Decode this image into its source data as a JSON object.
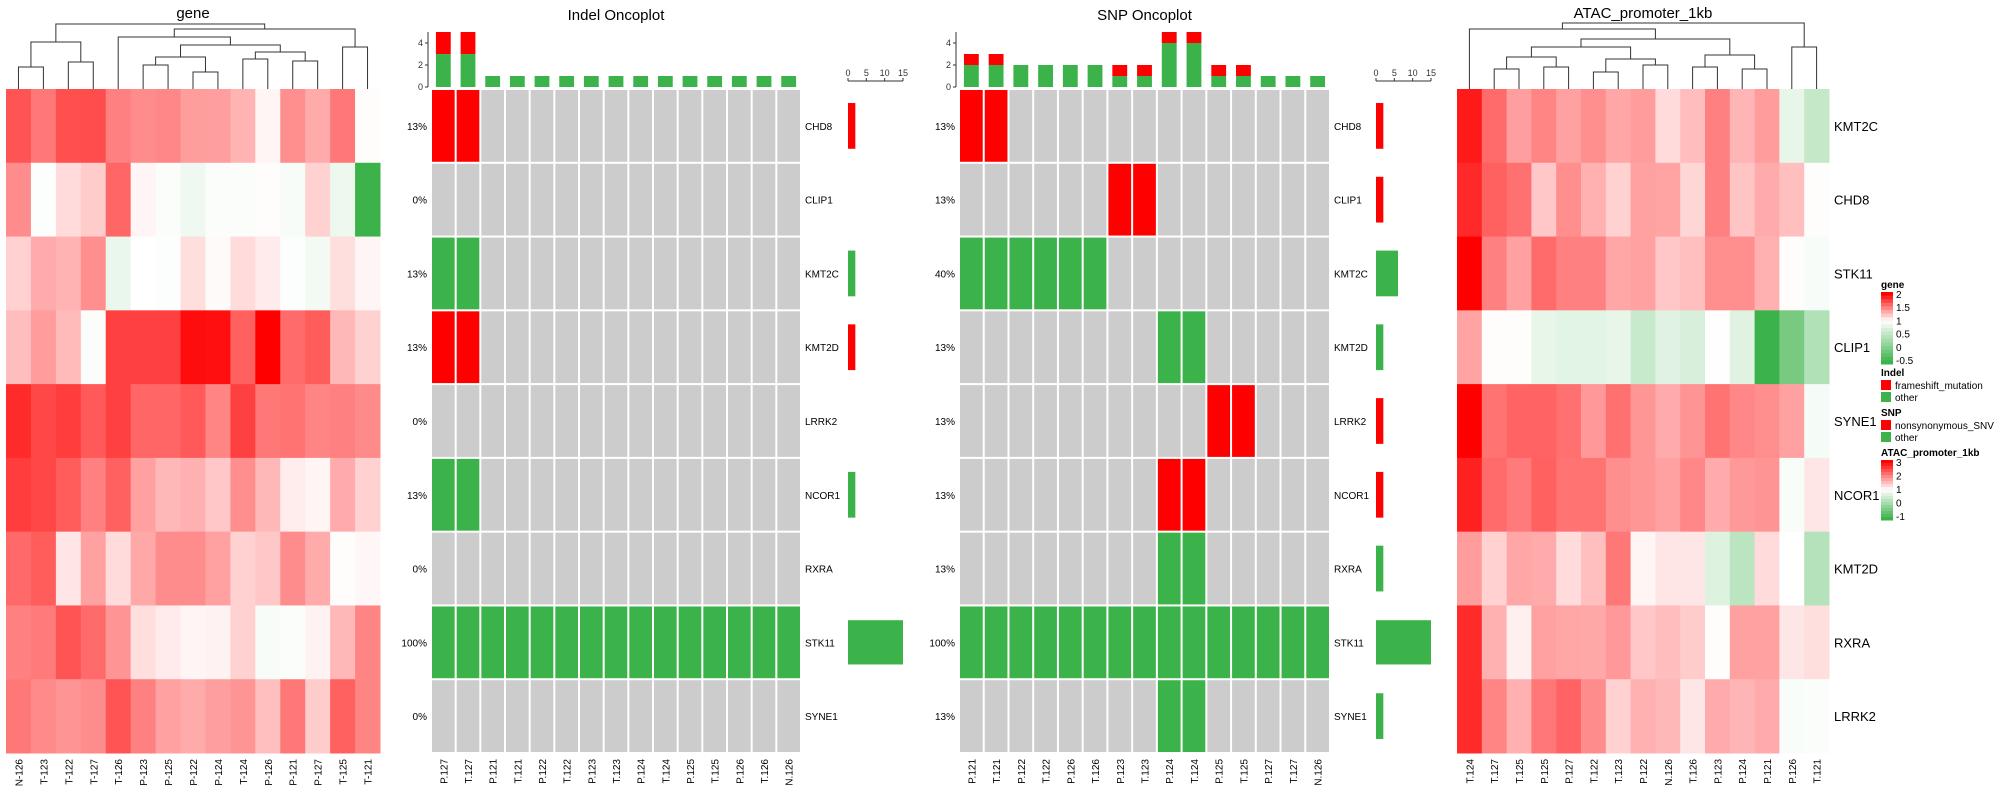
{
  "colors": {
    "red": "#ff0000",
    "green": "#3cb34a",
    "grey": "#cccccc",
    "white": "#ffffff"
  },
  "chart_data": [
    {
      "type": "heatmap",
      "title": "gene",
      "rows": [
        "CHD8",
        "CLIP1",
        "KMT2C",
        "KMT2D",
        "LRRK2",
        "NCOR1",
        "RXRA",
        "STK11",
        "SYNE1"
      ],
      "columns": [
        "N-126",
        "T-123",
        "T-122",
        "T-127",
        "T-126",
        "P-123",
        "P-125",
        "P-122",
        "P-124",
        "T-124",
        "P-126",
        "P-121",
        "P-127",
        "T-125",
        "T-121"
      ],
      "color_scale": {
        "min": -0.5,
        "mid": 1,
        "max": 2,
        "low_color": "#3cb34a",
        "mid_color": "#ffffff",
        "high_color": "#ff0000"
      },
      "values": [
        [
          1.67,
          1.53,
          1.69,
          1.7,
          1.5,
          1.45,
          1.47,
          1.39,
          1.38,
          1.3,
          1.04,
          1.44,
          1.33,
          1.53,
          1.01
        ],
        [
          1.45,
          0.98,
          1.14,
          1.2,
          1.6,
          1.04,
          0.96,
          0.88,
          0.97,
          0.96,
          1.01,
          0.94,
          1.18,
          0.86,
          -0.5
        ],
        [
          1.18,
          1.33,
          1.3,
          1.44,
          0.84,
          1.0,
          0.98,
          1.13,
          1.02,
          1.14,
          1.08,
          0.98,
          0.9,
          1.13,
          1.04
        ],
        [
          1.26,
          1.39,
          1.27,
          0.97,
          1.75,
          1.75,
          1.75,
          1.95,
          1.94,
          1.62,
          2.0,
          1.58,
          1.64,
          1.28,
          1.18
        ],
        [
          1.83,
          1.72,
          1.76,
          1.65,
          1.75,
          1.6,
          1.6,
          1.65,
          1.48,
          1.75,
          1.53,
          1.55,
          1.48,
          1.5,
          1.46
        ],
        [
          1.76,
          1.72,
          1.64,
          1.5,
          1.62,
          1.37,
          1.28,
          1.31,
          1.22,
          1.44,
          1.28,
          1.07,
          1.04,
          1.33,
          1.18
        ],
        [
          1.59,
          1.64,
          1.1,
          1.37,
          1.14,
          1.34,
          1.45,
          1.45,
          1.37,
          1.18,
          1.22,
          1.45,
          1.33,
          1.01,
          1.03
        ],
        [
          1.5,
          1.52,
          1.67,
          1.58,
          1.42,
          1.13,
          1.08,
          1.04,
          1.05,
          1.18,
          0.94,
          0.96,
          1.05,
          1.28,
          1.48
        ],
        [
          1.53,
          1.46,
          1.42,
          1.45,
          1.67,
          1.5,
          1.37,
          1.33,
          1.38,
          1.42,
          1.25,
          1.53,
          1.2,
          1.62,
          1.48
        ]
      ],
      "dendrogram": "columns"
    },
    {
      "type": "oncoplot",
      "title": "Indel Oncoplot",
      "rows": [
        "CHD8",
        "CLIP1",
        "KMT2C",
        "KMT2D",
        "LRRK2",
        "NCOR1",
        "RXRA",
        "STK11",
        "SYNE1"
      ],
      "row_percent": [
        "13%",
        "0%",
        "13%",
        "13%",
        "0%",
        "13%",
        "0%",
        "100%",
        "0%"
      ],
      "columns": [
        "P.127",
        "T.127",
        "P.121",
        "T.121",
        "P.122",
        "T.122",
        "P.123",
        "T.123",
        "P.124",
        "T.124",
        "P.125",
        "T.125",
        "P.126",
        "T.126",
        "N.126"
      ],
      "cells": {
        "CHD8": {
          "frameshift_mutation": [
            "P.127",
            "T.127"
          ]
        },
        "KMT2C": {
          "other": [
            "P.127",
            "T.127"
          ]
        },
        "KMT2D": {
          "frameshift_mutation": [
            "P.127",
            "T.127"
          ]
        },
        "NCOR1": {
          "other": [
            "P.127",
            "T.127"
          ]
        },
        "STK11": {
          "other": [
            "P.127",
            "T.127",
            "P.121",
            "T.121",
            "P.122",
            "T.122",
            "P.123",
            "T.123",
            "P.124",
            "T.124",
            "P.125",
            "T.125",
            "P.126",
            "T.126",
            "N.126"
          ]
        }
      },
      "top_bar_axis": {
        "ticks": [
          "0",
          "2",
          "4"
        ],
        "max": 5
      },
      "right_bar_axis": {
        "ticks": [
          "0",
          "5",
          "10",
          "15"
        ],
        "max": 15
      },
      "legend_types": [
        "frameshift_mutation",
        "other"
      ]
    },
    {
      "type": "oncoplot",
      "title": "SNP Oncoplot",
      "rows": [
        "CHD8",
        "CLIP1",
        "KMT2C",
        "KMT2D",
        "LRRK2",
        "NCOR1",
        "RXRA",
        "STK11",
        "SYNE1"
      ],
      "row_percent": [
        "13%",
        "13%",
        "40%",
        "13%",
        "13%",
        "13%",
        "13%",
        "100%",
        "13%"
      ],
      "columns": [
        "P.121",
        "T.121",
        "P.122",
        "T.122",
        "P.126",
        "T.126",
        "P.123",
        "T.123",
        "P.124",
        "T.124",
        "P.125",
        "T.125",
        "P.127",
        "T.127",
        "N.126"
      ],
      "cells": {
        "CHD8": {
          "nonsynonymous_SNV": [
            "P.121",
            "T.121"
          ]
        },
        "CLIP1": {
          "nonsynonymous_SNV": [
            "P.123",
            "T.123"
          ]
        },
        "KMT2C": {
          "other": [
            "P.121",
            "T.121",
            "P.122",
            "T.122",
            "P.126",
            "T.126"
          ]
        },
        "KMT2D": {
          "other": [
            "P.124",
            "T.124"
          ]
        },
        "LRRK2": {
          "nonsynonymous_SNV": [
            "P.125",
            "T.125"
          ]
        },
        "NCOR1": {
          "nonsynonymous_SNV": [
            "P.124",
            "T.124"
          ]
        },
        "RXRA": {
          "other": [
            "P.124",
            "T.124"
          ]
        },
        "STK11": {
          "other": [
            "P.121",
            "T.121",
            "P.122",
            "T.122",
            "P.126",
            "T.126",
            "P.123",
            "T.123",
            "P.124",
            "T.124",
            "P.125",
            "T.125",
            "P.127",
            "T.127",
            "N.126"
          ]
        },
        "SYNE1": {
          "other": [
            "P.124",
            "T.124"
          ]
        }
      },
      "top_bar_axis": {
        "ticks": [
          "0",
          "2",
          "4"
        ],
        "max": 5
      },
      "right_bar_axis": {
        "ticks": [
          "0",
          "5",
          "10",
          "15"
        ],
        "max": 15
      },
      "legend_types": [
        "nonsynonymous_SNV",
        "other"
      ]
    },
    {
      "type": "heatmap",
      "title": "ATAC_promoter_1kb",
      "rows": [
        "KMT2C",
        "CHD8",
        "STK11",
        "CLIP1",
        "SYNE1",
        "NCOR1",
        "KMT2D",
        "RXRA",
        "LRRK2"
      ],
      "columns": [
        "T.124",
        "T.127",
        "T.125",
        "P.125",
        "P.127",
        "T.122",
        "T.123",
        "P.122",
        "N.126",
        "T.126",
        "P.123",
        "P.124",
        "P.121",
        "P.126",
        "T.121"
      ],
      "color_scale": {
        "min": -1,
        "mid": 1,
        "max": 3,
        "low_color": "#3cb34a",
        "mid_color": "#ffffff",
        "high_color": "#ff0000"
      },
      "values": [
        [
          2.8,
          2.16,
          1.76,
          1.96,
          1.74,
          1.88,
          1.7,
          1.78,
          1.28,
          1.52,
          2.0,
          1.58,
          1.78,
          0.76,
          0.4
        ],
        [
          2.68,
          2.24,
          2.12,
          1.44,
          1.88,
          1.62,
          1.36,
          1.74,
          1.72,
          1.32,
          2.0,
          1.46,
          1.66,
          1.5,
          1.02
        ],
        [
          3.0,
          2.0,
          1.74,
          2.16,
          2.0,
          2.0,
          1.7,
          1.74,
          1.44,
          1.5,
          1.88,
          1.88,
          1.62,
          1.02,
          0.92
        ],
        [
          1.72,
          1.02,
          1.02,
          0.76,
          0.7,
          0.7,
          0.76,
          0.44,
          0.68,
          0.6,
          0.98,
          0.68,
          -1.0,
          -0.4,
          0.2
        ],
        [
          3.0,
          2.1,
          2.22,
          2.22,
          2.12,
          1.8,
          2.12,
          1.82,
          1.66,
          1.84,
          2.1,
          1.94,
          1.88,
          1.74,
          0.9
        ],
        [
          2.75,
          2.16,
          2.04,
          2.24,
          2.1,
          2.1,
          1.88,
          1.82,
          1.74,
          1.94,
          1.66,
          1.8,
          1.84,
          0.94,
          1.2
        ],
        [
          1.78,
          1.36,
          1.7,
          1.66,
          1.28,
          1.5,
          2.06,
          1.08,
          1.2,
          1.2,
          0.66,
          0.3,
          1.28,
          1.0,
          0.24
        ],
        [
          2.66,
          1.62,
          1.12,
          1.74,
          1.7,
          1.68,
          1.8,
          1.44,
          1.52,
          1.4,
          1.02,
          1.74,
          1.74,
          1.2,
          1.26
        ],
        [
          2.66,
          1.96,
          1.62,
          2.06,
          2.22,
          1.9,
          1.36,
          1.62,
          1.56,
          1.2,
          1.66,
          1.58,
          1.66,
          0.94,
          0.96
        ]
      ],
      "dendrogram": "columns"
    }
  ],
  "legend": [
    {
      "title": "gene",
      "type": "continuous",
      "ticks": [
        "2",
        "1.5",
        "1",
        "0.5",
        "0",
        "-0.5"
      ]
    },
    {
      "title": "Indel",
      "type": "discrete",
      "items": [
        {
          "label": "frameshift_mutation",
          "color": "#ff0000"
        },
        {
          "label": "other",
          "color": "#3cb34a"
        }
      ]
    },
    {
      "title": "SNP",
      "type": "discrete",
      "items": [
        {
          "label": "nonsynonymous_SNV",
          "color": "#ff0000"
        },
        {
          "label": "other",
          "color": "#3cb34a"
        }
      ]
    },
    {
      "title": "ATAC_promoter_1kb",
      "type": "continuous",
      "ticks": [
        "3",
        "2",
        "1",
        "0",
        "-1"
      ]
    }
  ]
}
